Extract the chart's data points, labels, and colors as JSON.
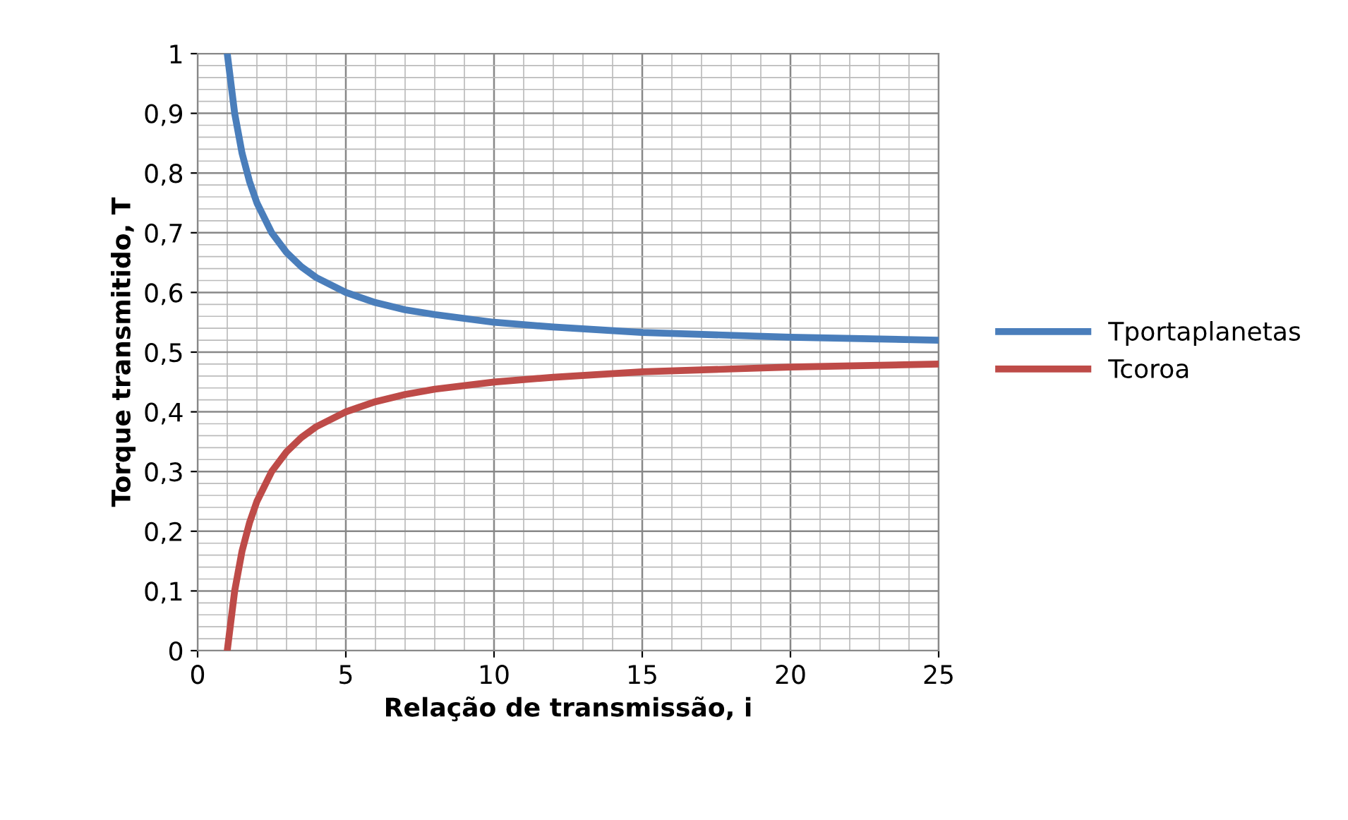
{
  "chart_data": {
    "type": "line",
    "xlabel": "Relação de transmissão, i",
    "ylabel": "Torque transmitido, T",
    "x": [
      1,
      1.25,
      1.5,
      1.75,
      2,
      2.5,
      3,
      3.5,
      4,
      5,
      6,
      7,
      8,
      10,
      12,
      15,
      20,
      25
    ],
    "series": [
      {
        "name": "Tportaplanetas",
        "color": "#4a7ebb",
        "values": [
          1,
          0.9,
          0.833,
          0.786,
          0.75,
          0.7,
          0.667,
          0.643,
          0.625,
          0.6,
          0.583,
          0.571,
          0.563,
          0.55,
          0.542,
          0.533,
          0.525,
          0.52
        ]
      },
      {
        "name": "Tcoroa",
        "color": "#be4b48",
        "values": [
          0,
          0.1,
          0.167,
          0.214,
          0.25,
          0.3,
          0.333,
          0.357,
          0.375,
          0.4,
          0.417,
          0.429,
          0.438,
          0.45,
          0.458,
          0.467,
          0.475,
          0.48
        ]
      }
    ],
    "xlim": [
      0,
      25
    ],
    "xticks": [
      0,
      5,
      10,
      15,
      20,
      25
    ],
    "ylim": [
      0,
      1
    ],
    "yticks": [
      0,
      {
        "value": 0.1,
        "label": "0,1"
      },
      {
        "value": 0.2,
        "label": "0,2"
      },
      {
        "value": 0.3,
        "label": "0,3"
      },
      {
        "value": 0.4,
        "label": "0,4"
      },
      {
        "value": 0.5,
        "label": "0,5"
      },
      {
        "value": 0.6,
        "label": "0,6"
      },
      {
        "value": 0.7,
        "label": "0,7"
      },
      {
        "value": 0.8,
        "label": "0,8"
      },
      {
        "value": 0.9,
        "label": "0,9"
      },
      1
    ],
    "grid": true,
    "legend": "right",
    "marker": "none",
    "line_style": "solid"
  }
}
